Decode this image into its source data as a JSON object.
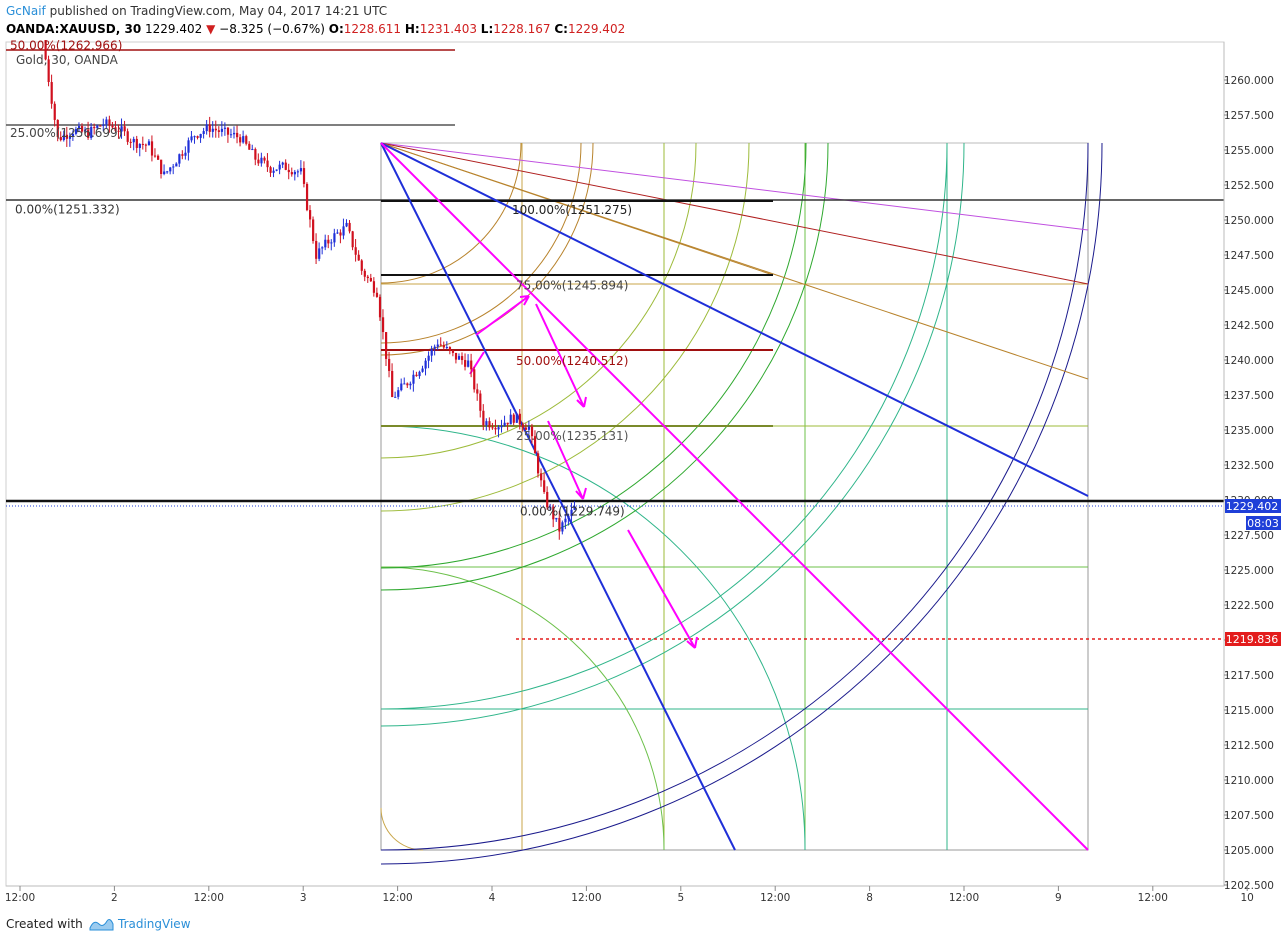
{
  "header": {
    "author": "GcNaif",
    "published": " published on TradingView.com, May 04, 2017 14:21 UTC",
    "symbol": "OANDA:XAUUSD, 30",
    "last": "1229.402",
    "change": "−8.325 (−0.67%)",
    "o_label": "O:",
    "o_value": "1228.611",
    "h_label": "H:",
    "h_value": "1231.403",
    "l_label": "L:",
    "l_value": "1228.167",
    "c_label": "C:",
    "c_value": "1229.402"
  },
  "footer": {
    "created_with": "Created with",
    "brand": "TradingView"
  },
  "colors": {
    "candle_up": "#1f2fd8",
    "candle_down": "#d0101e",
    "blue_line": "#1f2fd8",
    "magenta": "#ff00ff",
    "price_label": "#1f3fd8",
    "target_label": "#e31c1c"
  },
  "chart_data": {
    "type": "candlestick",
    "legend_text": "Gold, 30, OANDA",
    "ylim": [
      1202.5,
      1262.5
    ],
    "y_ticks": [
      "1260.000",
      "1257.500",
      "1255.000",
      "1252.500",
      "1250.000",
      "1247.500",
      "1245.000",
      "1242.500",
      "1240.000",
      "1237.500",
      "1235.000",
      "1232.500",
      "1230.000",
      "1227.500",
      "1225.000",
      "1222.500",
      "1220.000",
      "1217.500",
      "1215.000",
      "1212.500",
      "1210.000",
      "1207.500",
      "1205.000",
      "1202.500"
    ],
    "x_ticks": [
      "12:00",
      "2",
      "12:00",
      "3",
      "12:00",
      "4",
      "12:00",
      "5",
      "12:00",
      "8",
      "12:00",
      "9",
      "12:00",
      "10"
    ],
    "last_price": "1229.402",
    "countdown": "08:03",
    "target_price": "1219.836",
    "fib_left": [
      {
        "label": "50.00%(1262.966)",
        "value": 1262.966
      },
      {
        "label": "25.00%(1256.699)",
        "value": 1256.699
      },
      {
        "label": "0.00%(1251.332)",
        "value": 1251.332
      }
    ],
    "fib_right": [
      {
        "label": "100.00%(1251.275)",
        "value": 1251.275
      },
      {
        "label": "75.00%(1245.894)",
        "value": 1245.894
      },
      {
        "label": "50.00%(1240.512)",
        "value": 1240.512
      },
      {
        "label": "25.00%(1235.131)",
        "value": 1235.131
      },
      {
        "label": "0.00%(1229.749)",
        "value": 1229.749
      }
    ],
    "price_path": [
      1262.9,
      1255.8,
      1256.4,
      1256.2,
      1256.9,
      1256.5,
      1255.6,
      1255.3,
      1253.2,
      1254.6,
      1256.1,
      1256.6,
      1256.2,
      1255.9,
      1254.4,
      1253.7,
      1253.8,
      1253.4,
      1247.5,
      1248.7,
      1249.5,
      1246.4,
      1244.9,
      1237.3,
      1238.4,
      1239.7,
      1241.3,
      1240.3,
      1239.8,
      1235.6,
      1235.4,
      1235.9,
      1235.2,
      1230.2,
      1227.9,
      1229.4
    ]
  }
}
